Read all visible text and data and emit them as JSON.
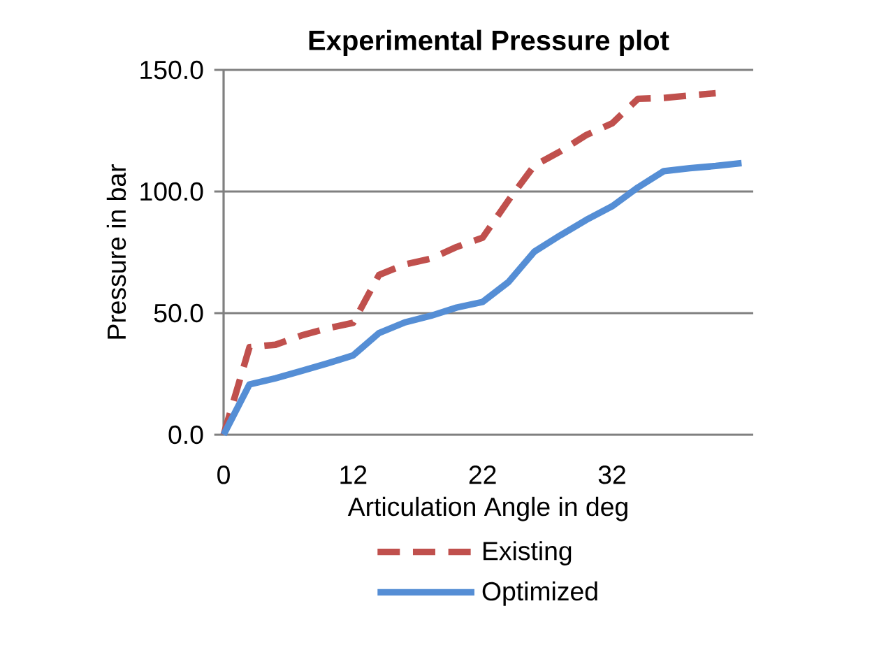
{
  "chart_data": {
    "type": "line",
    "title": "Experimental Pressure plot",
    "xlabel": "Articulation Angle in deg",
    "ylabel": "Pressure in bar",
    "categories": [
      "0",
      null,
      null,
      null,
      null,
      "12",
      null,
      null,
      null,
      null,
      "22",
      null,
      null,
      null,
      null,
      "32",
      null,
      null,
      null,
      null,
      null
    ],
    "series": [
      {
        "name": "Existing",
        "color": "#c0504d",
        "line_style": "dashed",
        "values": [
          0,
          36,
          37,
          40.8,
          43.7,
          46,
          65.7,
          70,
          72.4,
          77.2,
          81,
          96.4,
          110.7,
          116.5,
          123.2,
          128,
          138.1,
          138.5,
          139.5,
          140.4,
          null
        ]
      },
      {
        "name": "Optimized",
        "color": "#558ed5",
        "line_style": "solid",
        "values": [
          0,
          20.7,
          23.2,
          26.2,
          29.3,
          32.6,
          41.8,
          46.2,
          48.9,
          52.3,
          54.6,
          62.8,
          75.3,
          82,
          88.3,
          93.9,
          101.7,
          108.4,
          109.6,
          110.5,
          111.7
        ]
      }
    ],
    "ylim": [
      0,
      150
    ],
    "yticks": [
      {
        "value": 0,
        "label": "0.0"
      },
      {
        "value": 50,
        "label": "50.0"
      },
      {
        "value": 100,
        "label": "100.0"
      },
      {
        "value": 150,
        "label": "150.0"
      }
    ],
    "grid": "y",
    "legend": "bottom",
    "marker": "none"
  }
}
